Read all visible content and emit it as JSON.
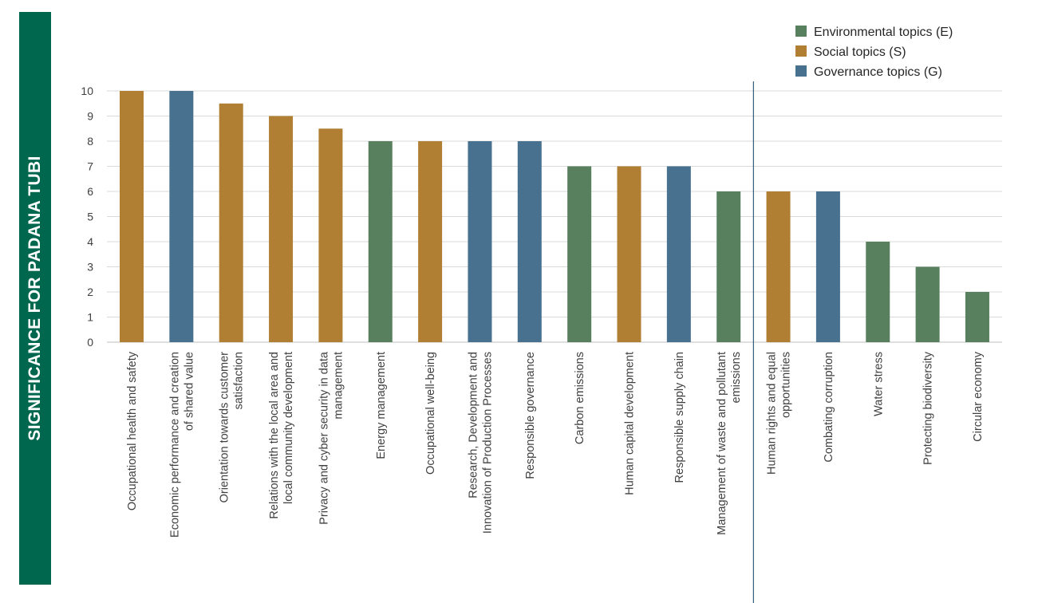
{
  "banner": {
    "label": "SIGNIFICANCE FOR PADANA TUBI"
  },
  "chart_data": {
    "type": "bar",
    "ylim": [
      0,
      10
    ],
    "yticks": [
      0,
      1,
      2,
      3,
      4,
      5,
      6,
      7,
      8,
      9,
      10
    ],
    "grid": true,
    "legend_position": "top-right",
    "colors": {
      "E": "#58805f",
      "S": "#b07f33",
      "G": "#47718f"
    },
    "legend": [
      {
        "key": "E",
        "label": "Environmental topics (E)"
      },
      {
        "key": "S",
        "label": "Social topics (S)"
      },
      {
        "key": "G",
        "label": "Governance topics (G)"
      }
    ],
    "divider_after_index": 12,
    "bars": [
      {
        "label": [
          "Occupational health and safety"
        ],
        "value": 10,
        "group": "S"
      },
      {
        "label": [
          "Economic performance and creation",
          "of shared value"
        ],
        "value": 10,
        "group": "G"
      },
      {
        "label": [
          "Orientation towards customer",
          "satisfaction"
        ],
        "value": 9.5,
        "group": "S"
      },
      {
        "label": [
          "Relations with the local area and",
          "local community development"
        ],
        "value": 9,
        "group": "S"
      },
      {
        "label": [
          "Privacy and cyber security in data",
          "management"
        ],
        "value": 8.5,
        "group": "S"
      },
      {
        "label": [
          "Energy management"
        ],
        "value": 8,
        "group": "E"
      },
      {
        "label": [
          "Occupational well-being"
        ],
        "value": 8,
        "group": "S"
      },
      {
        "label": [
          "Research, Development and",
          "Innovation of Production Processes"
        ],
        "value": 8,
        "group": "G"
      },
      {
        "label": [
          "Responsible governance"
        ],
        "value": 8,
        "group": "G"
      },
      {
        "label": [
          "Carbon emissions"
        ],
        "value": 7,
        "group": "E"
      },
      {
        "label": [
          "Human capital development"
        ],
        "value": 7,
        "group": "S"
      },
      {
        "label": [
          "Responsible supply chain"
        ],
        "value": 7,
        "group": "G"
      },
      {
        "label": [
          "Management of waste and pollutant",
          "emissions"
        ],
        "value": 6,
        "group": "E"
      },
      {
        "label": [
          "Human rights and equal",
          "opportunities"
        ],
        "value": 6,
        "group": "S"
      },
      {
        "label": [
          "Combating corruption"
        ],
        "value": 6,
        "group": "G"
      },
      {
        "label": [
          "Water stress"
        ],
        "value": 4,
        "group": "E"
      },
      {
        "label": [
          "Protecting biodiversity"
        ],
        "value": 3,
        "group": "E"
      },
      {
        "label": [
          "Circular economy"
        ],
        "value": 2,
        "group": "E"
      }
    ]
  }
}
